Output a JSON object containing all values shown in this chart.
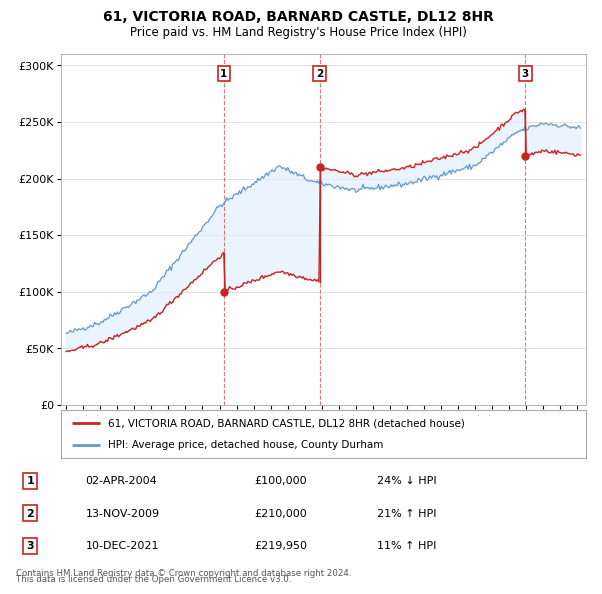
{
  "title": "61, VICTORIA ROAD, BARNARD CASTLE, DL12 8HR",
  "subtitle": "Price paid vs. HM Land Registry's House Price Index (HPI)",
  "transactions": [
    {
      "label": "1",
      "date": 2004.25,
      "price": 100000,
      "pct": "24%",
      "dir": "↓"
    },
    {
      "label": "2",
      "date": 2009.87,
      "price": 210000,
      "pct": "21%",
      "dir": "↑"
    },
    {
      "label": "3",
      "date": 2021.94,
      "price": 219950,
      "pct": "11%",
      "dir": "↑"
    }
  ],
  "transaction_dates_str": [
    "02-APR-2004",
    "13-NOV-2009",
    "10-DEC-2021"
  ],
  "transaction_prices_str": [
    "£100,000",
    "£210,000",
    "£219,950"
  ],
  "legend_line1": "61, VICTORIA ROAD, BARNARD CASTLE, DL12 8HR (detached house)",
  "legend_line2": "HPI: Average price, detached house, County Durham",
  "footer1": "Contains HM Land Registry data © Crown copyright and database right 2024.",
  "footer2": "This data is licensed under the Open Government Licence v3.0.",
  "hpi_color": "#6699cc",
  "price_color": "#cc2222",
  "fill_color": "#ddeeff",
  "plot_bg": "#ffffff",
  "ylim": [
    0,
    310000
  ],
  "xlim_start": 1994.7,
  "xlim_end": 2025.5
}
